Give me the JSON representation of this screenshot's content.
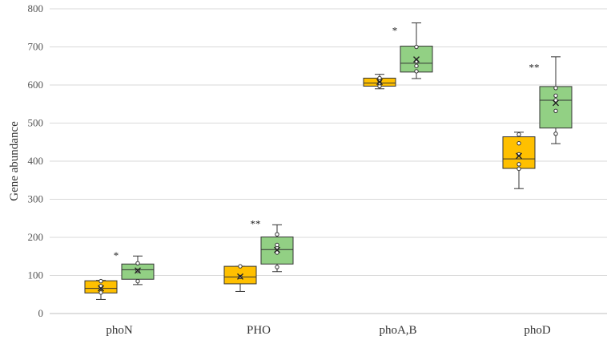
{
  "chart_data": {
    "type": "boxplot",
    "title": "",
    "xlabel": "",
    "ylabel": "Gene abundance",
    "ylim": [
      0,
      800
    ],
    "yticks": [
      0,
      100,
      200,
      300,
      400,
      500,
      600,
      700,
      800
    ],
    "grid": true,
    "legend": "none",
    "categories": [
      "phoN",
      "PHO",
      "phoA,B",
      "phoD"
    ],
    "series": [
      {
        "name": "group1",
        "color": "#FFC000",
        "boxes": [
          {
            "min": 37,
            "q1": 54,
            "median": 66,
            "q3": 86,
            "max": 87,
            "mean": 66,
            "points": [
              55,
              66,
              72,
              85
            ]
          },
          {
            "min": 58,
            "q1": 78,
            "median": 96,
            "q3": 124,
            "max": 124,
            "mean": 97,
            "points": [
              96,
              124
            ]
          },
          {
            "min": 590,
            "q1": 597,
            "median": 605,
            "q3": 618,
            "max": 628,
            "mean": 608,
            "points": [
              597,
              605,
              612,
              618
            ]
          },
          {
            "min": 328,
            "q1": 381,
            "median": 406,
            "q3": 464,
            "max": 476,
            "mean": 414,
            "points": [
              380,
              392,
              418,
              447,
              470
            ]
          }
        ]
      },
      {
        "name": "group2",
        "color": "#92D084",
        "boxes": [
          {
            "min": 76,
            "q1": 90,
            "median": 115,
            "q3": 130,
            "max": 151,
            "mean": 113,
            "points": [
              85,
              112,
              132
            ]
          },
          {
            "min": 110,
            "q1": 130,
            "median": 168,
            "q3": 201,
            "max": 233,
            "mean": 167,
            "points": [
              122,
              160,
              172,
              180,
              208
            ]
          },
          {
            "min": 617,
            "q1": 634,
            "median": 657,
            "q3": 702,
            "max": 763,
            "mean": 667,
            "points": [
              636,
              650,
              662,
              700
            ]
          },
          {
            "min": 446,
            "q1": 487,
            "median": 560,
            "q3": 596,
            "max": 674,
            "mean": 553,
            "points": [
              472,
              532,
              560,
              572,
              592
            ]
          }
        ]
      }
    ],
    "annotations": [
      {
        "category": "phoN",
        "text": "*",
        "y": 152
      },
      {
        "category": "PHO",
        "text": "**",
        "y": 235
      },
      {
        "category": "phoA,B",
        "text": "*",
        "y": 742
      },
      {
        "category": "phoD",
        "text": "**",
        "y": 645
      }
    ]
  }
}
